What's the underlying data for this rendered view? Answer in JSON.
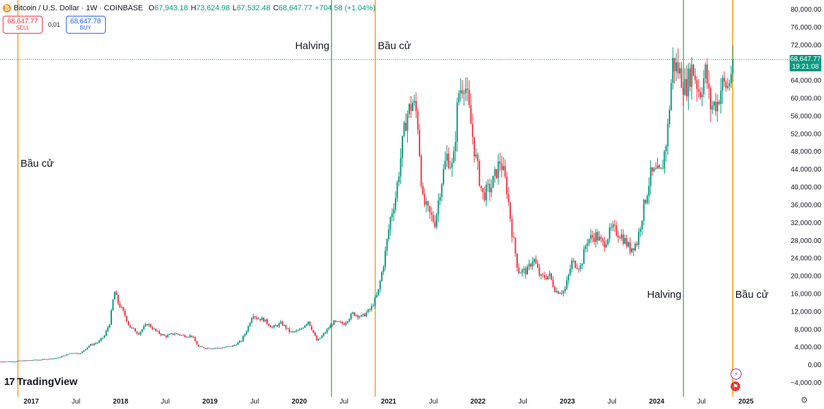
{
  "header": {
    "coin_icon": "bitcoin-icon",
    "title": "Bitcoin / U.S. Dollar · 1W · COINBASE",
    "open_label": "O",
    "open": "67,943.18",
    "high_label": "H",
    "high": "73,624.98",
    "low_label": "L",
    "low": "67,532.48",
    "close_label": "C",
    "close": "68,647.77",
    "change": "+704.58 (+1.04%)"
  },
  "trade": {
    "sell_price": "68,647.77",
    "sell_label": "SELL",
    "spread": "0.01",
    "buy_price": "68,647.78",
    "buy_label": "BUY"
  },
  "current_price": {
    "value": "68,647.77",
    "countdown": "19:21:08",
    "price": 68647.77
  },
  "brand": {
    "mark": "17",
    "name": "TradingView"
  },
  "colors": {
    "up": "#089981",
    "down": "#f23645",
    "halving": "#4caf50",
    "election": "#ff9800",
    "price_line": "#089981"
  },
  "chart_data": {
    "type": "candlestick",
    "series_name": "Bitcoin / U.S. Dollar",
    "interval": "1W",
    "ylim": [
      -6000,
      82000
    ],
    "y_ticks": [
      {
        "value": 80000,
        "label": "80,000.00"
      },
      {
        "value": 76000,
        "label": "76,000.00"
      },
      {
        "value": 72000,
        "label": "72,000.00"
      },
      {
        "value": 64000,
        "label": "64,000.00"
      },
      {
        "value": 60000,
        "label": "60,000.00"
      },
      {
        "value": 56000,
        "label": "56,000.00"
      },
      {
        "value": 52000,
        "label": "52,000.00"
      },
      {
        "value": 48000,
        "label": "48,000.00"
      },
      {
        "value": 44000,
        "label": "44,000.00"
      },
      {
        "value": 40000,
        "label": "40,000.00"
      },
      {
        "value": 36000,
        "label": "36,000.00"
      },
      {
        "value": 32000,
        "label": "32,000.00"
      },
      {
        "value": 28000,
        "label": "28,000.00"
      },
      {
        "value": 24000,
        "label": "24,000.00"
      },
      {
        "value": 20000,
        "label": "20,000.00"
      },
      {
        "value": 16000,
        "label": "16,000.00"
      },
      {
        "value": 12000,
        "label": "12,000.00"
      },
      {
        "value": 8000,
        "label": "8,000.00"
      },
      {
        "value": 4000,
        "label": "4,000.00"
      },
      {
        "value": 0,
        "label": "0.00"
      },
      {
        "value": -4000,
        "label": "−4,000.00"
      }
    ],
    "x_range": [
      2016.65,
      2025.45
    ],
    "x_ticks": [
      {
        "t": 2017.0,
        "label": "2017",
        "bold": true
      },
      {
        "t": 2017.5,
        "label": "Jul",
        "bold": false
      },
      {
        "t": 2018.0,
        "label": "2018",
        "bold": true
      },
      {
        "t": 2018.5,
        "label": "Jul",
        "bold": false
      },
      {
        "t": 2019.0,
        "label": "2019",
        "bold": true
      },
      {
        "t": 2019.5,
        "label": "Jul",
        "bold": false
      },
      {
        "t": 2020.0,
        "label": "2020",
        "bold": true
      },
      {
        "t": 2020.5,
        "label": "Jul",
        "bold": false
      },
      {
        "t": 2021.0,
        "label": "2021",
        "bold": true
      },
      {
        "t": 2021.5,
        "label": "Jul",
        "bold": false
      },
      {
        "t": 2022.0,
        "label": "2022",
        "bold": true
      },
      {
        "t": 2022.5,
        "label": "Jul",
        "bold": false
      },
      {
        "t": 2023.0,
        "label": "2023",
        "bold": true
      },
      {
        "t": 2023.5,
        "label": "Jul",
        "bold": false
      },
      {
        "t": 2024.0,
        "label": "2024",
        "bold": true
      },
      {
        "t": 2024.5,
        "label": "Jul",
        "bold": false
      },
      {
        "t": 2025.0,
        "label": "2025",
        "bold": true
      }
    ],
    "events": [
      {
        "t": 2016.52,
        "type": "halving",
        "label": "Halving",
        "label_value": 44500
      },
      {
        "t": 2016.85,
        "type": "election",
        "label": "Bầu cử",
        "label_value": 44500
      },
      {
        "t": 2020.36,
        "type": "halving",
        "label": "Halving",
        "label_value": 71000
      },
      {
        "t": 2020.85,
        "type": "election",
        "label": "Bầu cử",
        "label_value": 71000
      },
      {
        "t": 2024.3,
        "type": "halving",
        "label": "Halving",
        "label_value": 15000
      },
      {
        "t": 2024.85,
        "type": "election",
        "label": "Bầu cử",
        "label_value": 15000
      }
    ],
    "anchors": [
      [
        2016.65,
        650
      ],
      [
        2016.8,
        700
      ],
      [
        2017.0,
        950
      ],
      [
        2017.15,
        1150
      ],
      [
        2017.3,
        1500
      ],
      [
        2017.45,
        2600
      ],
      [
        2017.55,
        2500
      ],
      [
        2017.65,
        4300
      ],
      [
        2017.75,
        5000
      ],
      [
        2017.82,
        6500
      ],
      [
        2017.88,
        9500
      ],
      [
        2017.93,
        16500
      ],
      [
        2017.97,
        14000
      ],
      [
        2018.05,
        11000
      ],
      [
        2018.1,
        8500
      ],
      [
        2018.2,
        7000
      ],
      [
        2018.3,
        9200
      ],
      [
        2018.4,
        7400
      ],
      [
        2018.5,
        6300
      ],
      [
        2018.6,
        7000
      ],
      [
        2018.7,
        6500
      ],
      [
        2018.8,
        6400
      ],
      [
        2018.87,
        4000
      ],
      [
        2018.95,
        3700
      ],
      [
        2019.1,
        3700
      ],
      [
        2019.25,
        4100
      ],
      [
        2019.35,
        5300
      ],
      [
        2019.42,
        8100
      ],
      [
        2019.48,
        11500
      ],
      [
        2019.52,
        10500
      ],
      [
        2019.6,
        10100
      ],
      [
        2019.7,
        8300
      ],
      [
        2019.8,
        9300
      ],
      [
        2019.9,
        7200
      ],
      [
        2020.0,
        7600
      ],
      [
        2020.1,
        9800
      ],
      [
        2020.2,
        5200
      ],
      [
        2020.28,
        7000
      ],
      [
        2020.38,
        9500
      ],
      [
        2020.5,
        9200
      ],
      [
        2020.6,
        11500
      ],
      [
        2020.7,
        10700
      ],
      [
        2020.8,
        12500
      ],
      [
        2020.88,
        16000
      ],
      [
        2020.95,
        23500
      ],
      [
        2021.02,
        33000
      ],
      [
        2021.08,
        38000
      ],
      [
        2021.15,
        49000
      ],
      [
        2021.2,
        56000
      ],
      [
        2021.27,
        59000
      ],
      [
        2021.32,
        56000
      ],
      [
        2021.38,
        37000
      ],
      [
        2021.45,
        34000
      ],
      [
        2021.52,
        32000
      ],
      [
        2021.58,
        40000
      ],
      [
        2021.65,
        47000
      ],
      [
        2021.72,
        44000
      ],
      [
        2021.78,
        61000
      ],
      [
        2021.85,
        64000
      ],
      [
        2021.9,
        57000
      ],
      [
        2021.97,
        47000
      ],
      [
        2022.05,
        38000
      ],
      [
        2022.15,
        40000
      ],
      [
        2022.25,
        46000
      ],
      [
        2022.32,
        40000
      ],
      [
        2022.38,
        30000
      ],
      [
        2022.45,
        21000
      ],
      [
        2022.55,
        21000
      ],
      [
        2022.62,
        24000
      ],
      [
        2022.7,
        19500
      ],
      [
        2022.8,
        20000
      ],
      [
        2022.87,
        16500
      ],
      [
        2022.97,
        16500
      ],
      [
        2023.05,
        23000
      ],
      [
        2023.15,
        22000
      ],
      [
        2023.22,
        28000
      ],
      [
        2023.32,
        29000
      ],
      [
        2023.4,
        27000
      ],
      [
        2023.5,
        30500
      ],
      [
        2023.6,
        29200
      ],
      [
        2023.7,
        26000
      ],
      [
        2023.78,
        27500
      ],
      [
        2023.85,
        35000
      ],
      [
        2023.93,
        42500
      ],
      [
        2023.98,
        43000
      ],
      [
        2024.05,
        43000
      ],
      [
        2024.12,
        52000
      ],
      [
        2024.18,
        68000
      ],
      [
        2024.25,
        66000
      ],
      [
        2024.32,
        62000
      ],
      [
        2024.4,
        67000
      ],
      [
        2024.48,
        61000
      ],
      [
        2024.55,
        66000
      ],
      [
        2024.6,
        58000
      ],
      [
        2024.68,
        59000
      ],
      [
        2024.73,
        63000
      ],
      [
        2024.8,
        62500
      ],
      [
        2024.86,
        68647.77
      ]
    ]
  }
}
